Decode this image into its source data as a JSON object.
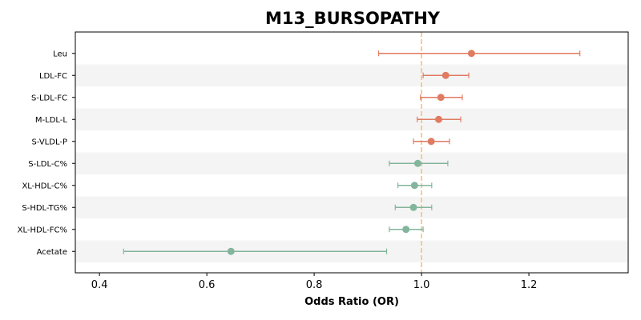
{
  "chart_data": {
    "type": "forest",
    "title": "M13_BURSOPATHY",
    "xlabel": "Odds Ratio (OR)",
    "ylabel": "",
    "xlim": [
      0.355,
      1.385
    ],
    "xticks": [
      0.4,
      0.6,
      0.8,
      1.0,
      1.2
    ],
    "xtick_labels": [
      "0.4",
      "0.6",
      "0.8",
      "1.0",
      "1.2"
    ],
    "reference_line": 1.0,
    "grid": false,
    "alternating_row_shading": true,
    "colors": {
      "positive": "#e07b62",
      "negative": "#82b59c",
      "reference": "#f5c07a",
      "band": "#f4f4f4"
    },
    "rows": [
      {
        "label": "Leu",
        "or": 1.093,
        "ci_low": 0.92,
        "ci_high": 1.295
      },
      {
        "label": "LDL-FC",
        "or": 1.045,
        "ci_low": 1.003,
        "ci_high": 1.088
      },
      {
        "label": "S-LDL-FC",
        "or": 1.036,
        "ci_low": 0.998,
        "ci_high": 1.076
      },
      {
        "label": "M-LDL-L",
        "or": 1.032,
        "ci_low": 0.992,
        "ci_high": 1.073
      },
      {
        "label": "S-VLDL-P",
        "or": 1.018,
        "ci_low": 0.985,
        "ci_high": 1.052
      },
      {
        "label": "S-LDL-C%",
        "or": 0.993,
        "ci_low": 0.94,
        "ci_high": 1.049
      },
      {
        "label": "XL-HDL-C%",
        "or": 0.987,
        "ci_low": 0.956,
        "ci_high": 1.019
      },
      {
        "label": "S-HDL-TG%",
        "or": 0.985,
        "ci_low": 0.951,
        "ci_high": 1.019
      },
      {
        "label": "XL-HDL-FC%",
        "or": 0.971,
        "ci_low": 0.94,
        "ci_high": 1.003
      },
      {
        "label": "Acetate",
        "or": 0.645,
        "ci_low": 0.445,
        "ci_high": 0.935
      }
    ]
  }
}
